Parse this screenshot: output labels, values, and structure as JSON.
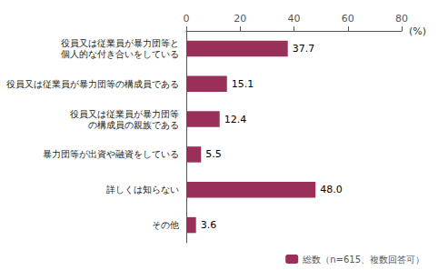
{
  "chart_data": {
    "type": "bar",
    "orientation": "horizontal",
    "xlabel": "(%)",
    "categories": [
      "役員又は従業員が暴力団等と\n個人的な付き合いをしている",
      "役員又は従業員が暴力団等の構成員である",
      "役員又は従業員が暴力団等\nの構成員の親族である",
      "暴力団等が出資や融資をしている",
      "詳しくは知らない",
      "その他"
    ],
    "series": [
      {
        "name": "総数（n=615、複数回答可）",
        "color": "#99305a",
        "values": [
          37.7,
          15.1,
          12.4,
          5.5,
          48.0,
          3.6
        ],
        "value_labels": [
          "37.7",
          "15.1",
          "12.4",
          "5.5",
          "48.0",
          "3.6"
        ]
      }
    ],
    "xlim": [
      0,
      80
    ],
    "xticks": [
      0,
      20,
      40,
      60,
      80
    ],
    "data_labels": true,
    "legend": "lower right",
    "grid": false
  }
}
